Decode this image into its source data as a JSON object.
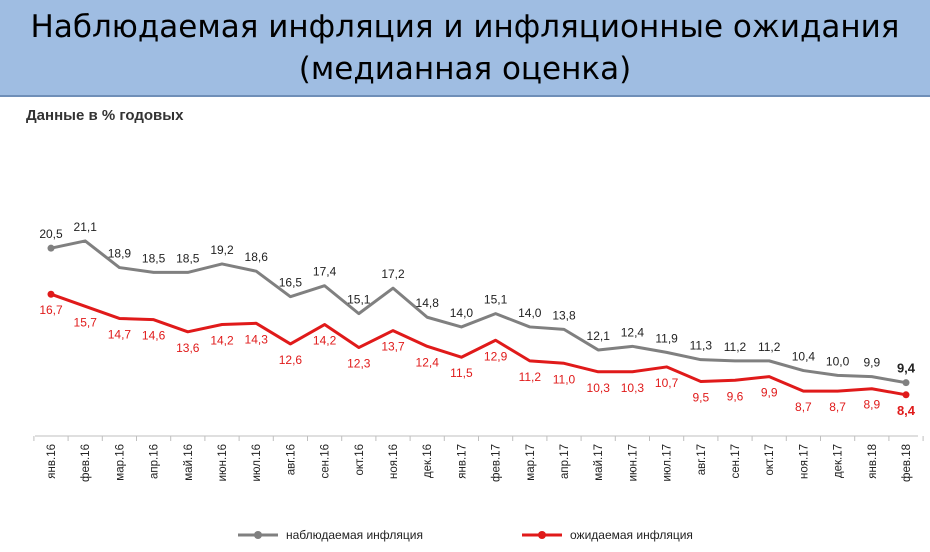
{
  "header": {
    "title_line1": "Наблюдаемая инфляция и инфляционные ожидания",
    "title_line2": "(медианная оценка)"
  },
  "chart_data": {
    "type": "line",
    "subtitle": "Данные в % годовых",
    "categories": [
      "янв.16",
      "фев.16",
      "мар.16",
      "апр.16",
      "май.16",
      "июн.16",
      "июл.16",
      "авг.16",
      "сен.16",
      "окт.16",
      "ноя.16",
      "дек.16",
      "янв.17",
      "фев.17",
      "мар.17",
      "апр.17",
      "май.17",
      "июн.17",
      "июл.17",
      "авг.17",
      "сен.17",
      "окт.17",
      "ноя.17",
      "дек.17",
      "янв.18",
      "фев.18"
    ],
    "series": [
      {
        "name": "наблюдаемая инфляция",
        "color": "#808080",
        "values": [
          20.5,
          21.1,
          18.9,
          18.5,
          18.5,
          19.2,
          18.6,
          16.5,
          17.4,
          15.1,
          17.2,
          14.8,
          14.0,
          15.1,
          14.0,
          13.8,
          12.1,
          12.4,
          11.9,
          11.3,
          11.2,
          11.2,
          10.4,
          10.0,
          9.9,
          9.4
        ],
        "labels": [
          "20,5",
          "21,1",
          "18,9",
          "18,5",
          "18,5",
          "19,2",
          "18,6",
          "16,5",
          "17,4",
          "15,1",
          "17,2",
          "14,8",
          "14,0",
          "15,1",
          "14,0",
          "13,8",
          "12,1",
          "12,4",
          "11,9",
          "11,3",
          "11,2",
          "11,2",
          "10,4",
          "10,0",
          "9,9",
          "9,4"
        ]
      },
      {
        "name": "ожидаемая инфляция",
        "color": "#e01a1a",
        "values": [
          16.7,
          15.7,
          14.7,
          14.6,
          13.6,
          14.2,
          14.3,
          12.6,
          14.2,
          12.3,
          13.7,
          12.4,
          11.5,
          12.9,
          11.2,
          11.0,
          10.3,
          10.3,
          10.7,
          9.5,
          9.6,
          9.9,
          8.7,
          8.7,
          8.9,
          8.4
        ],
        "labels": [
          "16,7",
          "15,7",
          "14,7",
          "14,6",
          "13,6",
          "14,2",
          "14,3",
          "12,6",
          "14,2",
          "12,3",
          "13,7",
          "12,4",
          "11,5",
          "12,9",
          "11,2",
          "11,0",
          "10,3",
          "10,3",
          "10,7",
          "9,5",
          "9,6",
          "9,9",
          "8,7",
          "8,7",
          "8,9",
          "8,4"
        ]
      }
    ],
    "ylim": [
      5,
      22
    ],
    "grid": false,
    "legend": "bottom"
  }
}
